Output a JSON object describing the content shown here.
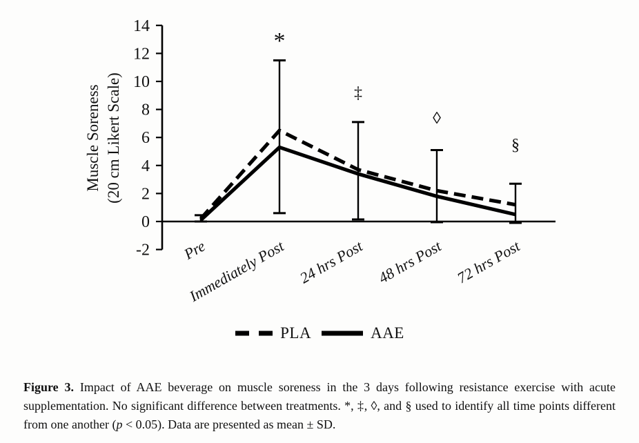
{
  "figure": {
    "caption": {
      "label": "Figure 3.",
      "before_p": "Impact of AAE beverage on muscle soreness in the 3 days following resistance exercise with acute supplementation. No significant difference between treatments. *, ‡, ◊, and § used to identify all time points different from one another (",
      "p_symbol": "p",
      "after_p": " < 0.05). Data are presented as mean ± SD."
    }
  },
  "chart_data": {
    "type": "line",
    "title": "",
    "xlabel": "",
    "ylabel_line1": "Muscle Soreness",
    "ylabel_line2": "(20 cm Likert Scale)",
    "categories": [
      "Pre",
      "Immediately Post",
      "24 hrs Post",
      "48 hrs Post",
      "72 hrs Post"
    ],
    "series": [
      {
        "name": "PLA",
        "style": "dashed",
        "values": [
          0.2,
          6.5,
          3.7,
          2.2,
          1.2
        ]
      },
      {
        "name": "AAE",
        "style": "solid",
        "values": [
          0.1,
          5.3,
          3.4,
          1.8,
          0.5
        ]
      }
    ],
    "error_bars": [
      {
        "low": 0.0,
        "high": 0.45
      },
      {
        "low": 0.6,
        "high": 11.5
      },
      {
        "low": 0.15,
        "high": 7.1
      },
      {
        "low": -0.05,
        "high": 5.1
      },
      {
        "low": -0.1,
        "high": 2.7
      }
    ],
    "significance_markers": [
      {
        "symbol": "*",
        "category_index": 1,
        "y": 13.2
      },
      {
        "symbol": "‡",
        "category_index": 2,
        "y": 9.2
      },
      {
        "symbol": "◊",
        "category_index": 3,
        "y": 7.4
      },
      {
        "symbol": "§",
        "category_index": 4,
        "y": 5.5
      }
    ],
    "yticks": [
      14,
      12,
      10,
      8,
      6,
      4,
      2,
      0,
      -2
    ],
    "ylim": [
      -2,
      14
    ],
    "grid": "off",
    "legend_position": "bottom",
    "line_color": "#000000",
    "background": "#fdfdfc"
  }
}
